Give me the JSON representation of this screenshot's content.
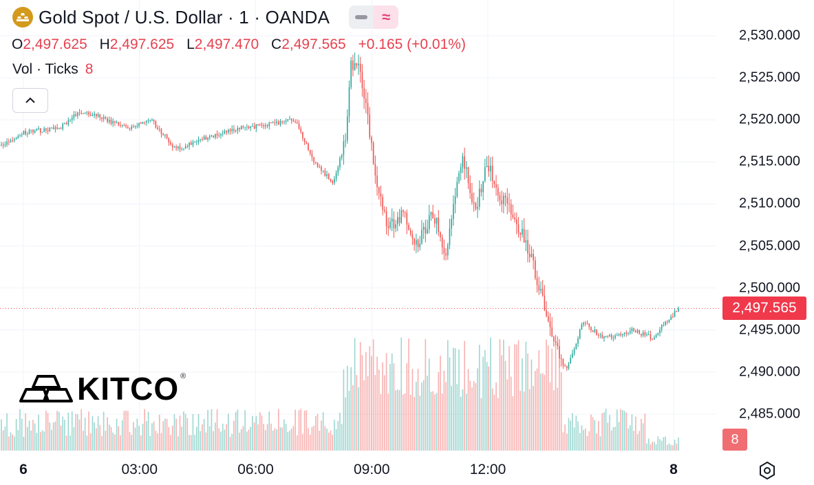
{
  "header": {
    "title": "Gold Spot / U.S. Dollar · 1 · OANDA",
    "open_label": "O",
    "open": "2,497.625",
    "high_label": "H",
    "high": "2,497.625",
    "low_label": "L",
    "low": "2,497.470",
    "close_label": "C",
    "close": "2,497.565",
    "change": "+0.165 (+0.01%)",
    "vol_label": "Vol · Ticks",
    "vol_value": "8"
  },
  "icons": {
    "logo": "gold-bars-icon",
    "toggle_a": "minus-icon",
    "toggle_b": "approx-wave-icon",
    "collapse": "chevron-up-icon",
    "settings": "hexagon-gear-icon"
  },
  "colors": {
    "up": "#26a69a",
    "down": "#ef5350",
    "price_tag": "#f0394b",
    "vol_tag": "#f06d72"
  },
  "axis": {
    "y_ticks": [
      "2,530.000",
      "2,525.000",
      "2,520.000",
      "2,515.000",
      "2,510.000",
      "2,505.000",
      "2,500.000",
      "2,495.000",
      "2,490.000",
      "2,485.000"
    ],
    "x_ticks": [
      "6",
      "03:00",
      "06:00",
      "09:00",
      "12:00",
      "8"
    ],
    "last_price_label": "2,497.565",
    "last_volume_label": "8"
  },
  "watermark": {
    "text": "KITCO",
    "mark": "®"
  },
  "chart_data": {
    "type": "candlestick",
    "title": "Gold Spot / U.S. Dollar · 1 · OANDA",
    "ylim": [
      2483,
      2531
    ],
    "x_ticks": [
      "6",
      "03:00",
      "06:00",
      "09:00",
      "12:00",
      "8"
    ],
    "last_price": 2497.565,
    "grid": true,
    "anchors": {
      "t": [
        0,
        0.5,
        1.4,
        1.9,
        2.3,
        3.0,
        3.6,
        4.2,
        5.0,
        5.8,
        6.5,
        7.1,
        7.5,
        8.0,
        8.3,
        8.4,
        8.6,
        8.8,
        9.0,
        9.3,
        9.7,
        10.0,
        10.4,
        10.7,
        11.1,
        11.4,
        11.7,
        12.0,
        12.4,
        12.8,
        13.2,
        13.6,
        14.0,
        14.5,
        15.2,
        15.7,
        16.0,
        16.3
      ],
      "price": [
        2517,
        2518.5,
        2519,
        2521,
        2520.5,
        2519,
        2520,
        2516.5,
        2518,
        2519,
        2519.5,
        2520,
        2515,
        2512.5,
        2518,
        2526.5,
        2526,
        2521,
        2513,
        2507,
        2509,
        2505,
        2509,
        2504,
        2516,
        2509,
        2515,
        2511,
        2508,
        2503,
        2495,
        2490,
        2496,
        2494,
        2495,
        2494,
        2496,
        2497.5
      ],
      "volume_ticks_range": [
        0,
        250
      ]
    },
    "bar_count": 365
  }
}
